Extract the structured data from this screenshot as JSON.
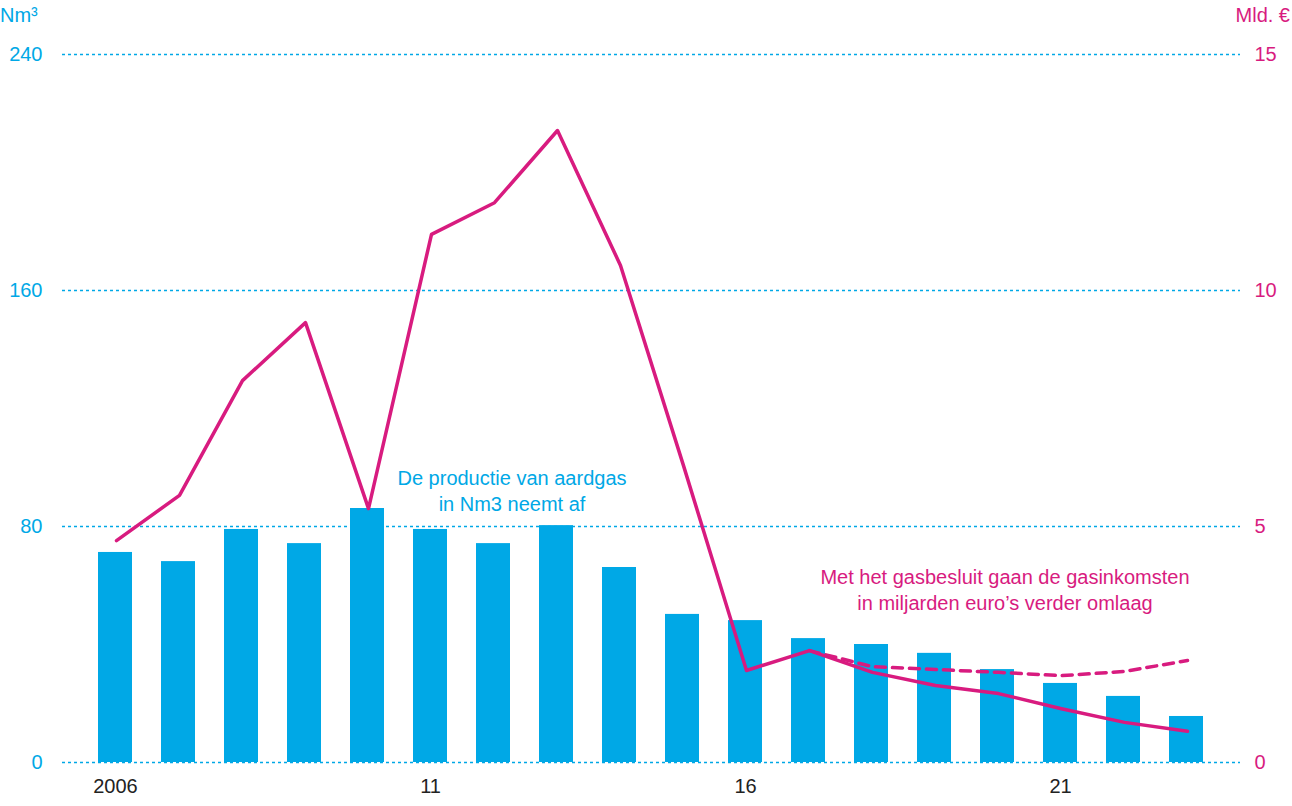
{
  "chart_data": {
    "type": "bar",
    "categories": [
      "2006",
      null,
      null,
      null,
      null,
      "11",
      null,
      null,
      null,
      null,
      "16",
      null,
      null,
      null,
      null,
      "21",
      null,
      null
    ],
    "y_label": "Nm³",
    "y2_label": "Mld. €",
    "ylim": [
      0,
      240
    ],
    "yticks": [
      0,
      80,
      160,
      240
    ],
    "y2lim": [
      0,
      15
    ],
    "y2ticks": [
      0,
      5,
      10,
      15
    ],
    "grid": true,
    "series": [
      {
        "type": "bar",
        "color": "#00a8e6",
        "values": [
          71.2,
          68.1,
          79,
          74.2,
          86.1,
          79,
          74.2,
          80.3,
          66.1,
          50.2,
          48.1,
          42,
          40,
          37,
          31.5,
          26.8,
          22.4,
          15.6
        ]
      },
      {
        "type": "line",
        "axis": "y2",
        "color": "#d81b7f",
        "line_style": "solid",
        "values": [
          4.7,
          5.66,
          8.09,
          9.32,
          5.38,
          11.19,
          11.86,
          13.39,
          10.53,
          6.29,
          1.95,
          2.37,
          1.91,
          1.63,
          1.46,
          1.14,
          0.85,
          0.66
        ]
      },
      {
        "type": "line",
        "axis": "y2",
        "color": "#d81b7f",
        "line_style": "dashed",
        "values": [
          null,
          null,
          null,
          null,
          null,
          null,
          null,
          null,
          null,
          null,
          null,
          2.37,
          2.03,
          1.97,
          1.91,
          1.84,
          1.93,
          2.16
        ]
      }
    ],
    "annotations": [
      {
        "text": [
          "De productie van aardgas",
          "in Nm3 neemt af"
        ],
        "color": "#00a8e6"
      },
      {
        "text": [
          "Met het gasbesluit gaan de gasinkomsten",
          "in miljarden euro’s verder omlaag"
        ],
        "color": "#d81b7f"
      }
    ]
  }
}
